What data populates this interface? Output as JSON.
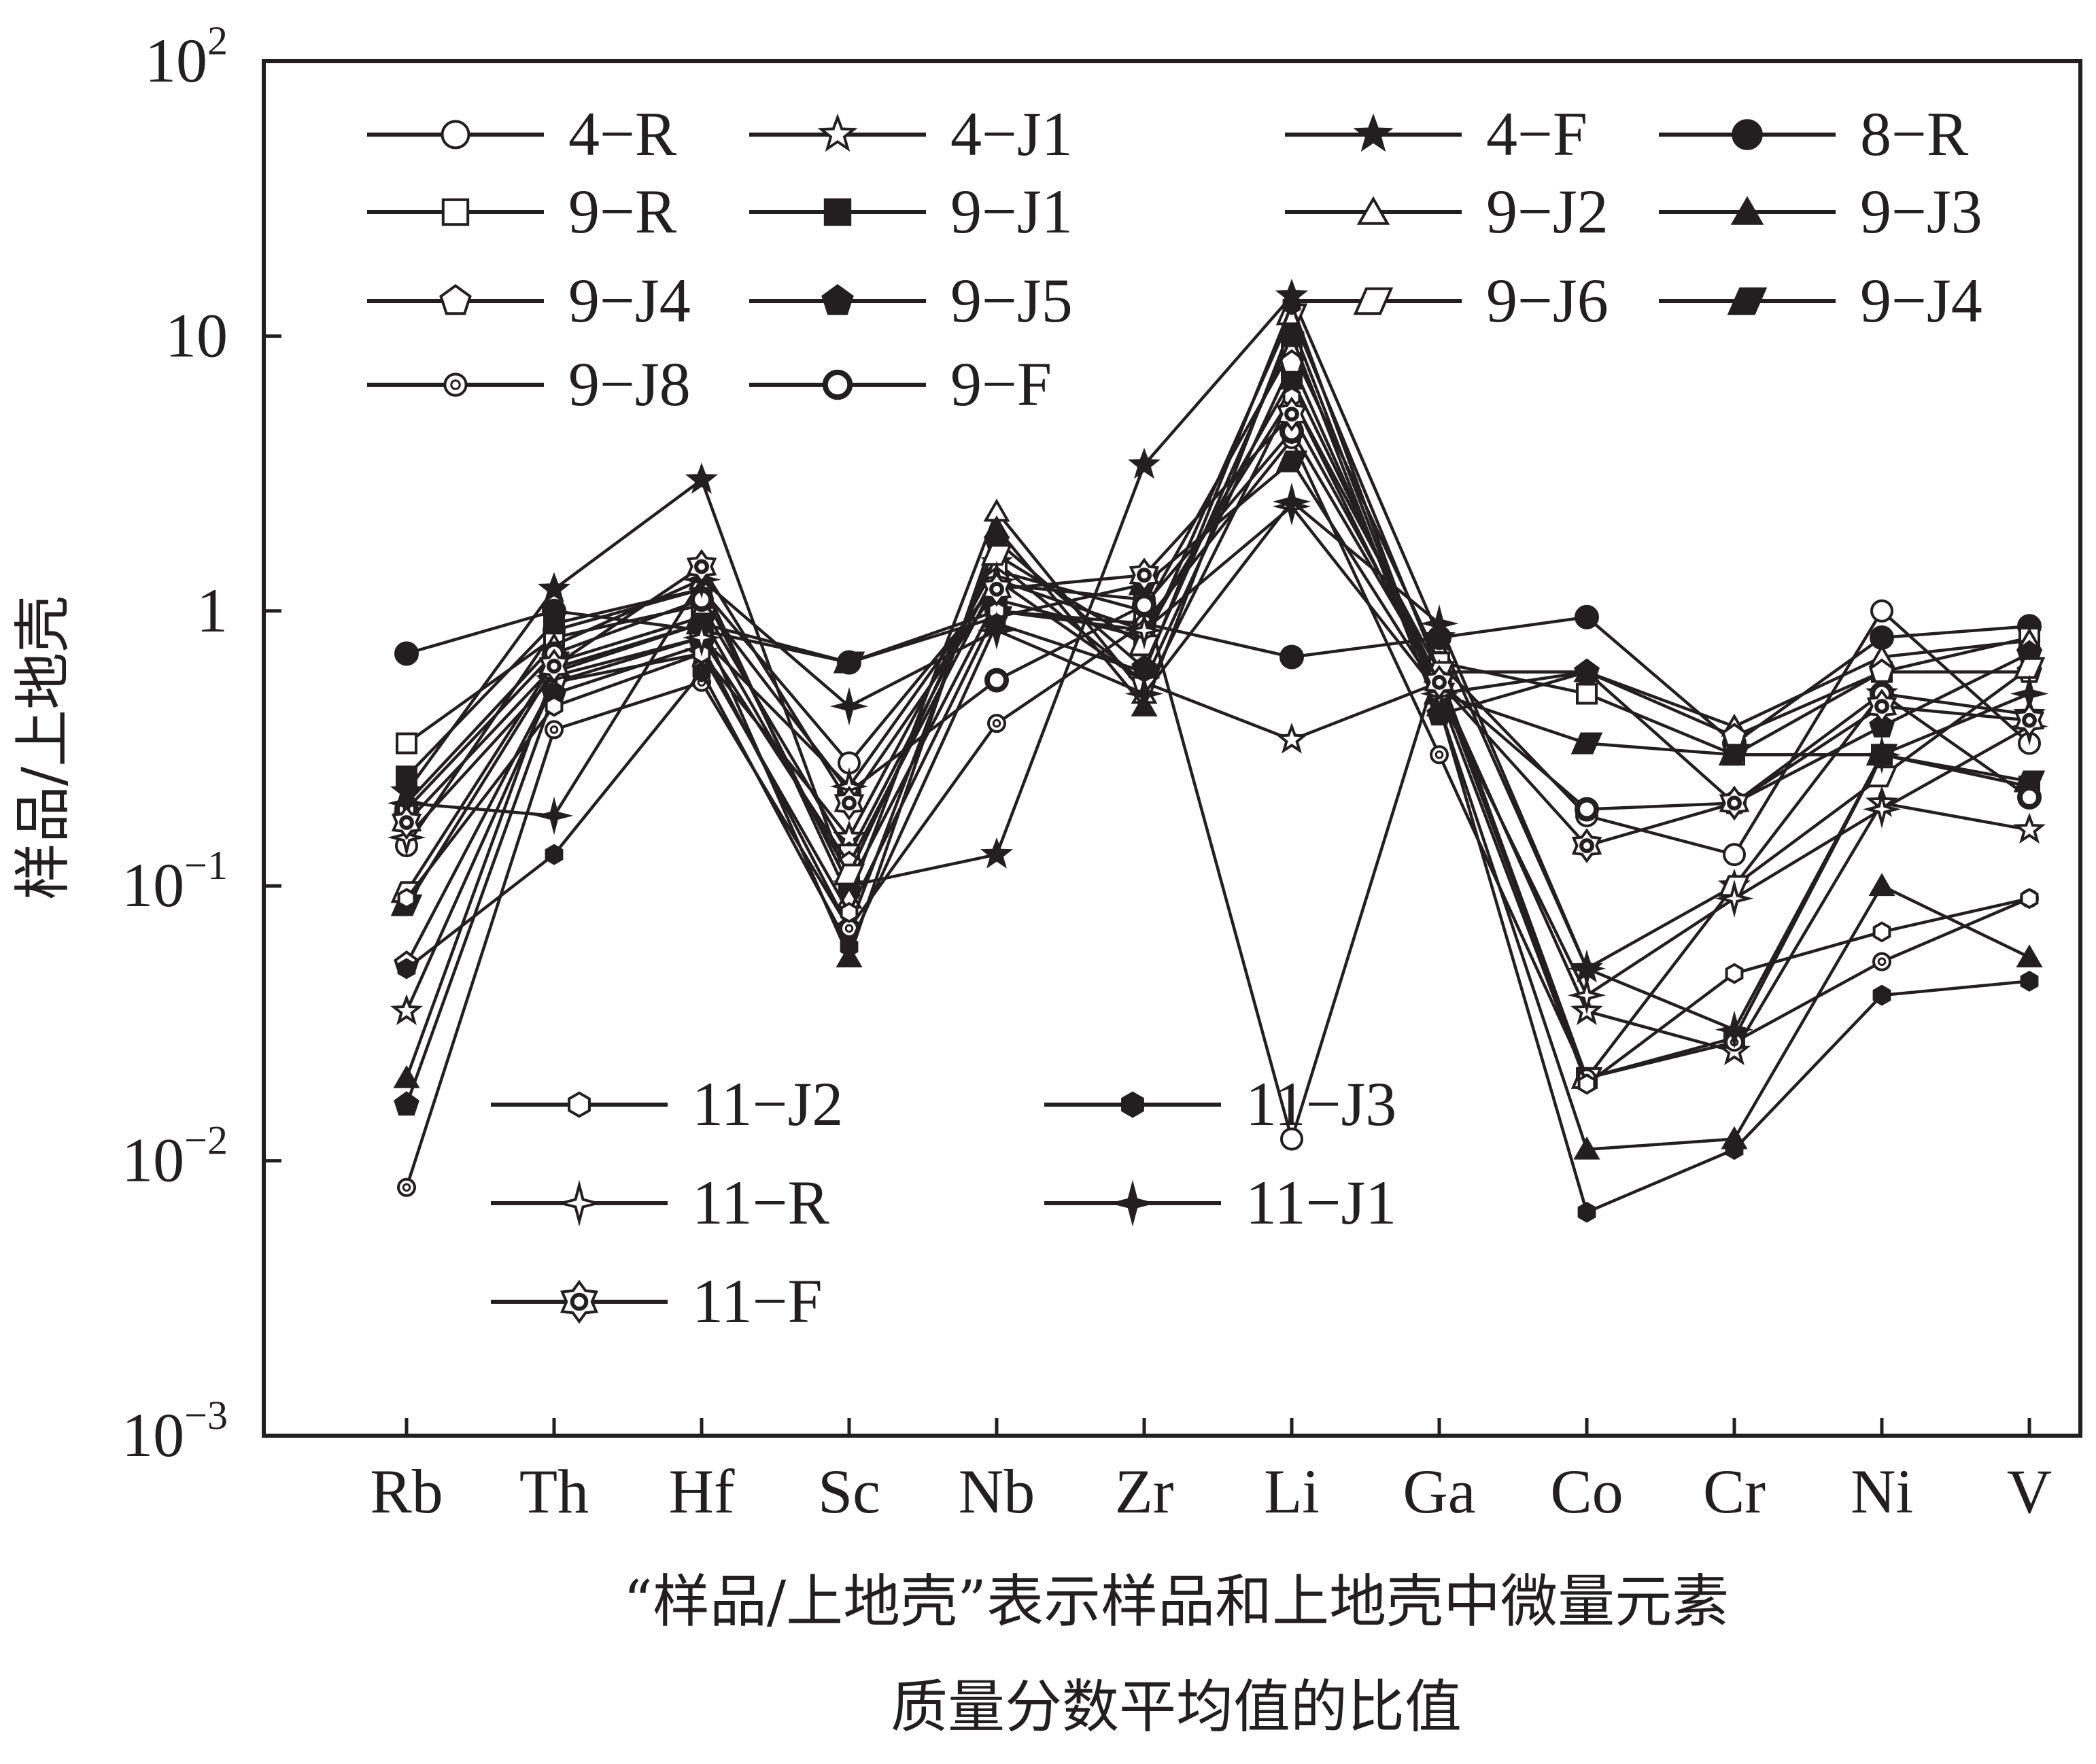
{
  "chart_data": {
    "type": "line",
    "y_scale": "log",
    "ylim": [
      0.001,
      100
    ],
    "ylabel": "样品/上地壳",
    "xlabel_lines": [
      "“样品/上地壳”表示样品和上地壳中微量元素",
      "质量分数平均值的比值"
    ],
    "y_ticks": [
      {
        "value": 100,
        "base": "10",
        "exp": "2"
      },
      {
        "value": 10,
        "base": "10",
        "exp": ""
      },
      {
        "value": 1,
        "base": "1",
        "exp": ""
      },
      {
        "value": 0.1,
        "base": "10",
        "exp": "−1"
      },
      {
        "value": 0.01,
        "base": "10",
        "exp": "−2"
      },
      {
        "value": 0.001,
        "base": "10",
        "exp": "−3"
      }
    ],
    "categories": [
      "Rb",
      "Th",
      "Hf",
      "Sc",
      "Nb",
      "Zr",
      "Li",
      "Ga",
      "Co",
      "Cr",
      "Ni",
      "V"
    ],
    "series": [
      {
        "name": "4−R",
        "marker": "circle",
        "filled": false,
        "size": 30,
        "values": [
          0.14,
          0.85,
          1.2,
          0.28,
          1.25,
          1.1,
          0.012,
          0.65,
          0.18,
          0.13,
          1.0,
          0.33
        ]
      },
      {
        "name": "4−J1",
        "marker": "star5",
        "filled": false,
        "size": 30,
        "values": [
          0.035,
          0.55,
          0.7,
          0.15,
          1.5,
          0.55,
          0.34,
          0.55,
          0.035,
          0.025,
          0.2,
          0.16
        ]
      },
      {
        "name": "4−F",
        "marker": "star5",
        "filled": true,
        "size": 30,
        "values": [
          0.22,
          1.2,
          3.0,
          0.1,
          0.13,
          3.4,
          14,
          0.8,
          0.05,
          0.1,
          0.5,
          0.42
        ]
      },
      {
        "name": "8−R",
        "marker": "circle",
        "filled": true,
        "size": 32,
        "values": [
          0.7,
          1.0,
          0.85,
          0.65,
          1.0,
          0.9,
          0.68,
          0.8,
          0.95,
          0.33,
          0.8,
          0.88
        ]
      },
      {
        "name": "9−R",
        "marker": "square",
        "filled": false,
        "size": 28,
        "values": [
          0.33,
          0.8,
          1.05,
          0.13,
          1.4,
          1.0,
          9.0,
          0.65,
          0.5,
          0.3,
          0.6,
          0.8
        ]
      },
      {
        "name": "9−J1",
        "marker": "square",
        "filled": true,
        "size": 28,
        "values": [
          0.25,
          0.9,
          1.2,
          0.1,
          1.1,
          0.8,
          7.0,
          0.55,
          0.02,
          0.028,
          0.3,
          0.23
        ]
      },
      {
        "name": "9−J2",
        "marker": "triangle",
        "filled": false,
        "size": 30,
        "values": [
          0.2,
          0.75,
          1.3,
          0.09,
          2.3,
          0.5,
          6.0,
          0.6,
          0.6,
          0.38,
          0.68,
          0.78
        ]
      },
      {
        "name": "9−J3",
        "marker": "triangle",
        "filled": true,
        "size": 30,
        "values": [
          0.02,
          0.6,
          0.9,
          0.055,
          2.0,
          0.45,
          11,
          0.45,
          0.011,
          0.012,
          0.1,
          0.055
        ]
      },
      {
        "name": "9−J4",
        "marker": "pentagon",
        "filled": false,
        "size": 30,
        "values": [
          0.052,
          0.55,
          0.8,
          0.12,
          1.3,
          0.55,
          8.0,
          0.5,
          0.6,
          0.35,
          0.6,
          0.6
        ]
      },
      {
        "name": "9−J5",
        "marker": "pentagon",
        "filled": true,
        "size": 30,
        "values": [
          0.016,
          0.5,
          0.75,
          0.07,
          1.8,
          0.62,
          10,
          0.42,
          0.6,
          0.2,
          0.38,
          0.7
        ]
      },
      {
        "name": "9−J6",
        "marker": "parallelogram",
        "filled": false,
        "size": 28,
        "values": [
          0.095,
          0.65,
          0.95,
          0.11,
          1.6,
          0.75,
          12,
          0.6,
          0.02,
          0.1,
          0.25,
          0.62
        ]
      },
      {
        "name": "9−J4",
        "marker": "parallelogram",
        "filled": true,
        "size": 28,
        "values": [
          0.085,
          0.62,
          0.9,
          0.65,
          0.95,
          1.25,
          3.5,
          0.5,
          0.33,
          0.3,
          0.3,
          0.24
        ]
      },
      {
        "name": "9−J8",
        "marker": "circle-dot",
        "filled": false,
        "size": 24,
        "values": [
          0.008,
          0.37,
          0.55,
          0.07,
          0.39,
          0.9,
          4.2,
          0.3,
          0.02,
          0.027,
          0.053,
          0.09
        ]
      },
      {
        "name": "9−F",
        "marker": "circle-ring",
        "filled": false,
        "size": 28,
        "values": [
          0.19,
          0.7,
          1.1,
          0.22,
          0.56,
          1.05,
          4.5,
          0.55,
          0.19,
          0.2,
          0.5,
          0.21
        ]
      },
      {
        "name": "11−J2",
        "marker": "hexagon",
        "filled": false,
        "size": 24,
        "values": [
          0.09,
          0.45,
          0.7,
          0.08,
          1.0,
          0.85,
          6.0,
          0.5,
          0.019,
          0.048,
          0.068,
          0.09
        ]
      },
      {
        "name": "11−J3",
        "marker": "hexagon",
        "filled": true,
        "size": 24,
        "values": [
          0.05,
          0.13,
          0.6,
          0.06,
          0.9,
          0.6,
          13,
          0.45,
          0.0065,
          0.011,
          0.04,
          0.045
        ]
      },
      {
        "name": "11−R",
        "marker": "star4",
        "filled": false,
        "size": 30,
        "values": [
          0.15,
          0.58,
          0.8,
          0.23,
          1.3,
          0.85,
          2.4,
          0.5,
          0.04,
          0.09,
          0.19,
          0.38
        ]
      },
      {
        "name": "11−J1",
        "marker": "star4",
        "filled": true,
        "size": 30,
        "values": [
          0.2,
          0.18,
          1.3,
          0.45,
          0.85,
          0.5,
          2.5,
          0.9,
          0.05,
          0.03,
          0.3,
          0.5
        ]
      },
      {
        "name": "11−F",
        "marker": "star6",
        "filled": false,
        "size": 36,
        "values": [
          0.17,
          0.63,
          1.45,
          0.2,
          1.2,
          1.35,
          5.2,
          0.55,
          0.14,
          0.2,
          0.45,
          0.4
        ]
      }
    ]
  }
}
